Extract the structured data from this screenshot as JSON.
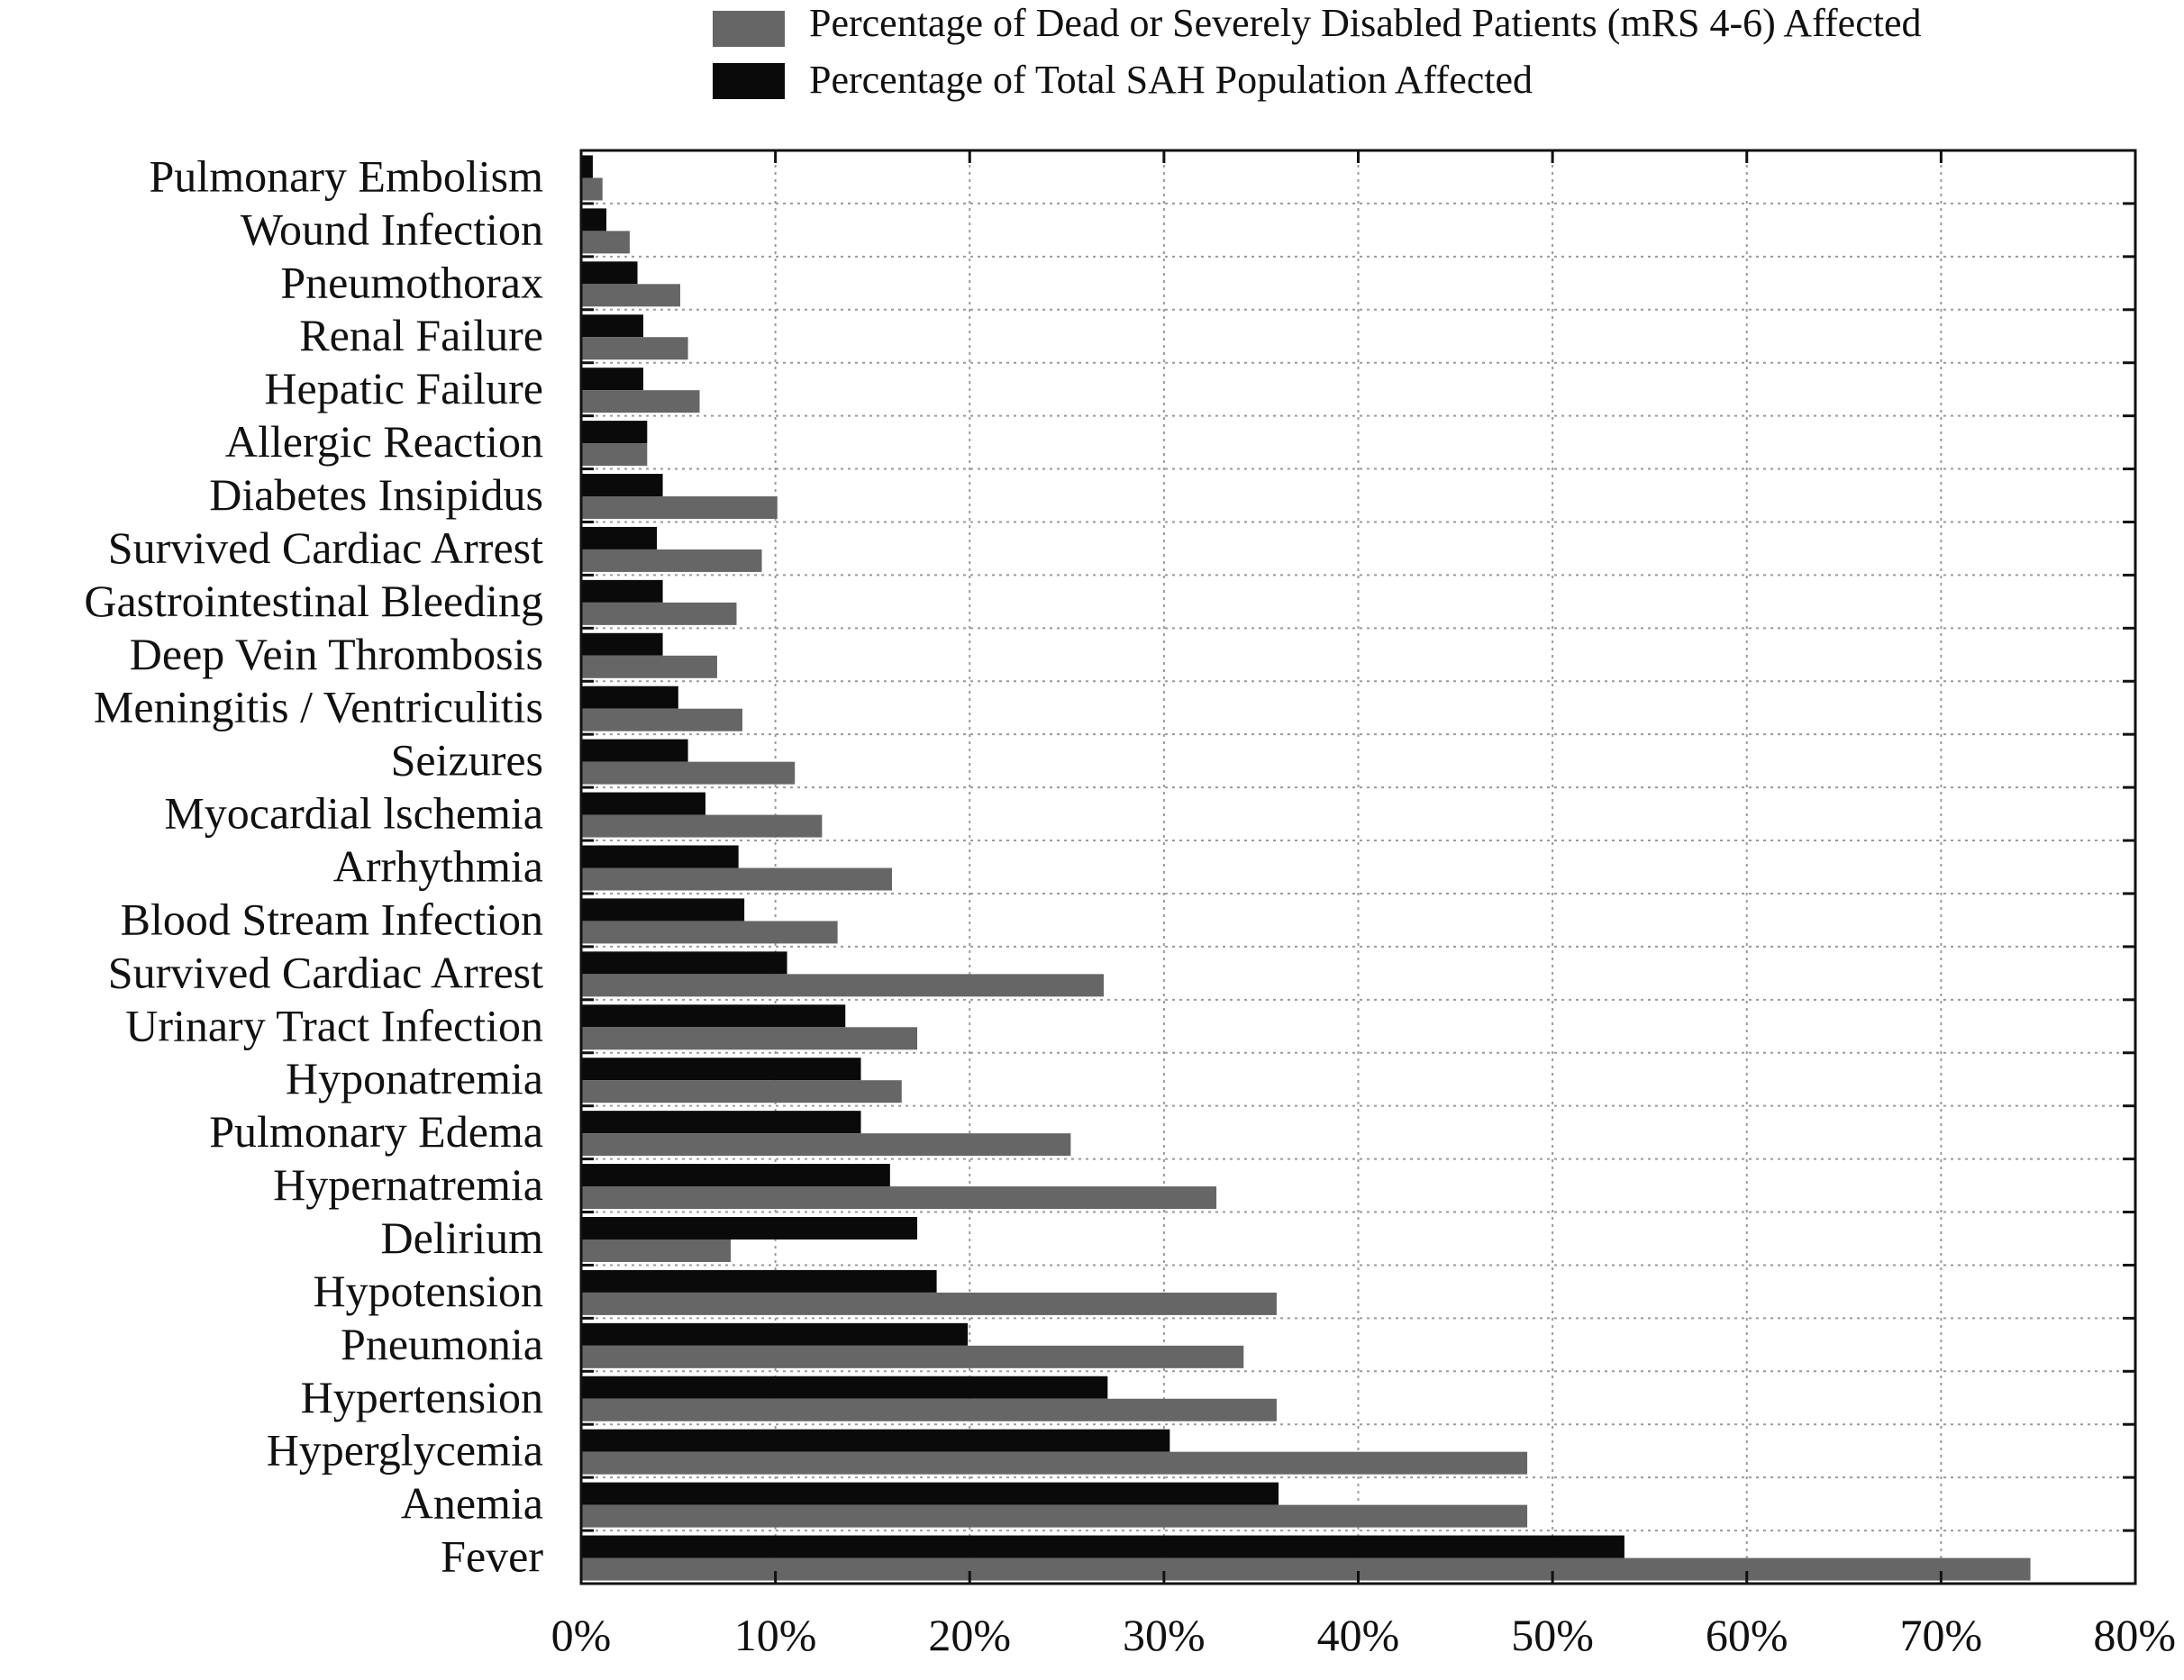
{
  "chart_data": {
    "type": "bar",
    "orientation": "horizontal",
    "title": "",
    "xlabel": "",
    "ylabel": "",
    "xlim": [
      0,
      80
    ],
    "x_tick_values": [
      0,
      10,
      20,
      30,
      40,
      50,
      60,
      70,
      80
    ],
    "x_tick_labels": [
      "0%",
      "10%",
      "20%",
      "30%",
      "40%",
      "50%",
      "60%",
      "70%",
      "80%"
    ],
    "grid": "vertical-dotted",
    "legend_position": "top",
    "categories": [
      "Pulmonary Embolism",
      "Wound Infection",
      "Pneumothorax",
      "Renal Failure",
      "Hepatic Failure",
      "Allergic Reaction",
      "Diabetes Insipidus",
      "Survived Cardiac Arrest",
      "Gastrointestinal Bleeding",
      "Deep Vein Thrombosis",
      "Meningitis / Ventriculitis",
      "Seizures",
      "Myocardial lschemia",
      "Arrhythmia",
      "Blood Stream Infection",
      "Survived Cardiac Arrest",
      "Urinary Tract Infection",
      "Hyponatremia",
      "Pulmonary Edema",
      "Hypernatremia",
      "Delirium",
      "Hypotension",
      "Pneumonia",
      "Hypertension",
      "Hyperglycemia",
      "Anemia",
      "Fever"
    ],
    "series": [
      {
        "name": "Percentage of Total SAH Population Affected",
        "color": "#0a0a0a",
        "values": [
          0.6,
          1.3,
          2.9,
          3.2,
          3.2,
          3.4,
          4.2,
          3.9,
          4.2,
          4.2,
          5.0,
          5.5,
          6.4,
          8.1,
          8.4,
          10.6,
          13.6,
          14.4,
          14.4,
          15.9,
          17.3,
          18.3,
          19.9,
          27.1,
          30.3,
          35.9,
          53.7
        ]
      },
      {
        "name": "Percentage of Dead or Severely Disabled Patients (mRS 4-6) Affected",
        "color": "#666666",
        "values": [
          1.1,
          2.5,
          5.1,
          5.5,
          6.1,
          3.4,
          10.1,
          9.3,
          8.0,
          7.0,
          8.3,
          11.0,
          12.4,
          16.0,
          13.2,
          26.9,
          17.3,
          16.5,
          25.2,
          32.7,
          7.7,
          35.8,
          34.1,
          35.8,
          48.7,
          48.7,
          74.6
        ]
      }
    ],
    "legend": [
      "Percentage of Dead or Severely Disabled Patients (mRS 4-6) Affected",
      "Percentage of Total SAH Population Affected"
    ]
  },
  "colors": {
    "total_population": "#0a0a0a",
    "dead_or_disabled": "#666666",
    "axis": "#111111",
    "grid": "#9a9a9a"
  }
}
